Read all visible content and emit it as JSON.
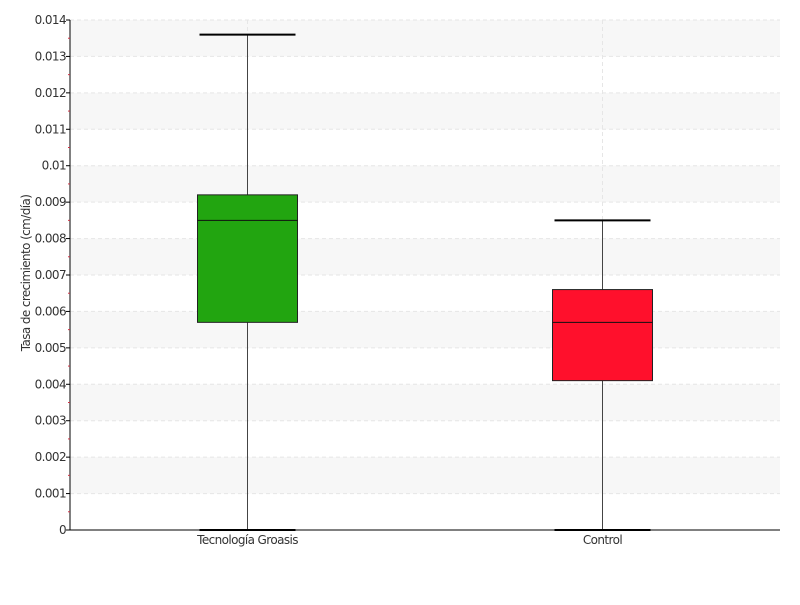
{
  "chart_data": {
    "type": "boxplot",
    "title": "",
    "xlabel": "",
    "ylabel": "Tasa de crecimiento (cm/día)",
    "ylim": [
      0,
      0.014
    ],
    "y_ticks": [
      0,
      0.001,
      0.002,
      0.003,
      0.004,
      0.005,
      0.006,
      0.007,
      0.008,
      0.009,
      0.01,
      0.011,
      0.012,
      0.013,
      0.014
    ],
    "y_tick_labels": [
      "0",
      "0.001",
      "0.002",
      "0.003",
      "0.004",
      "0.005",
      "0.006",
      "0.007",
      "0.008",
      "0.009",
      "0.01",
      "0.011",
      "0.012",
      "0.013",
      "0.014"
    ],
    "categories": [
      "Tecnología Groasis",
      "Control"
    ],
    "boxes": [
      {
        "category": "Tecnología Groasis",
        "min": 0.0,
        "q1": 0.0057,
        "median": 0.0085,
        "q3": 0.0092,
        "max": 0.0136,
        "color": "#22a510"
      },
      {
        "category": "Control",
        "min": 0.0,
        "q1": 0.0041,
        "median": 0.0057,
        "q3": 0.0066,
        "max": 0.0085,
        "color": "#ff102c"
      }
    ],
    "grid": true,
    "grid_style": "dashed, alternating shaded bands",
    "legend": "none"
  },
  "colors": {
    "band": "#f7f7f7",
    "grid": "#e6e6e6",
    "axis": "#000000",
    "whisker": "#444444",
    "minor_tick": "#cc3344"
  }
}
